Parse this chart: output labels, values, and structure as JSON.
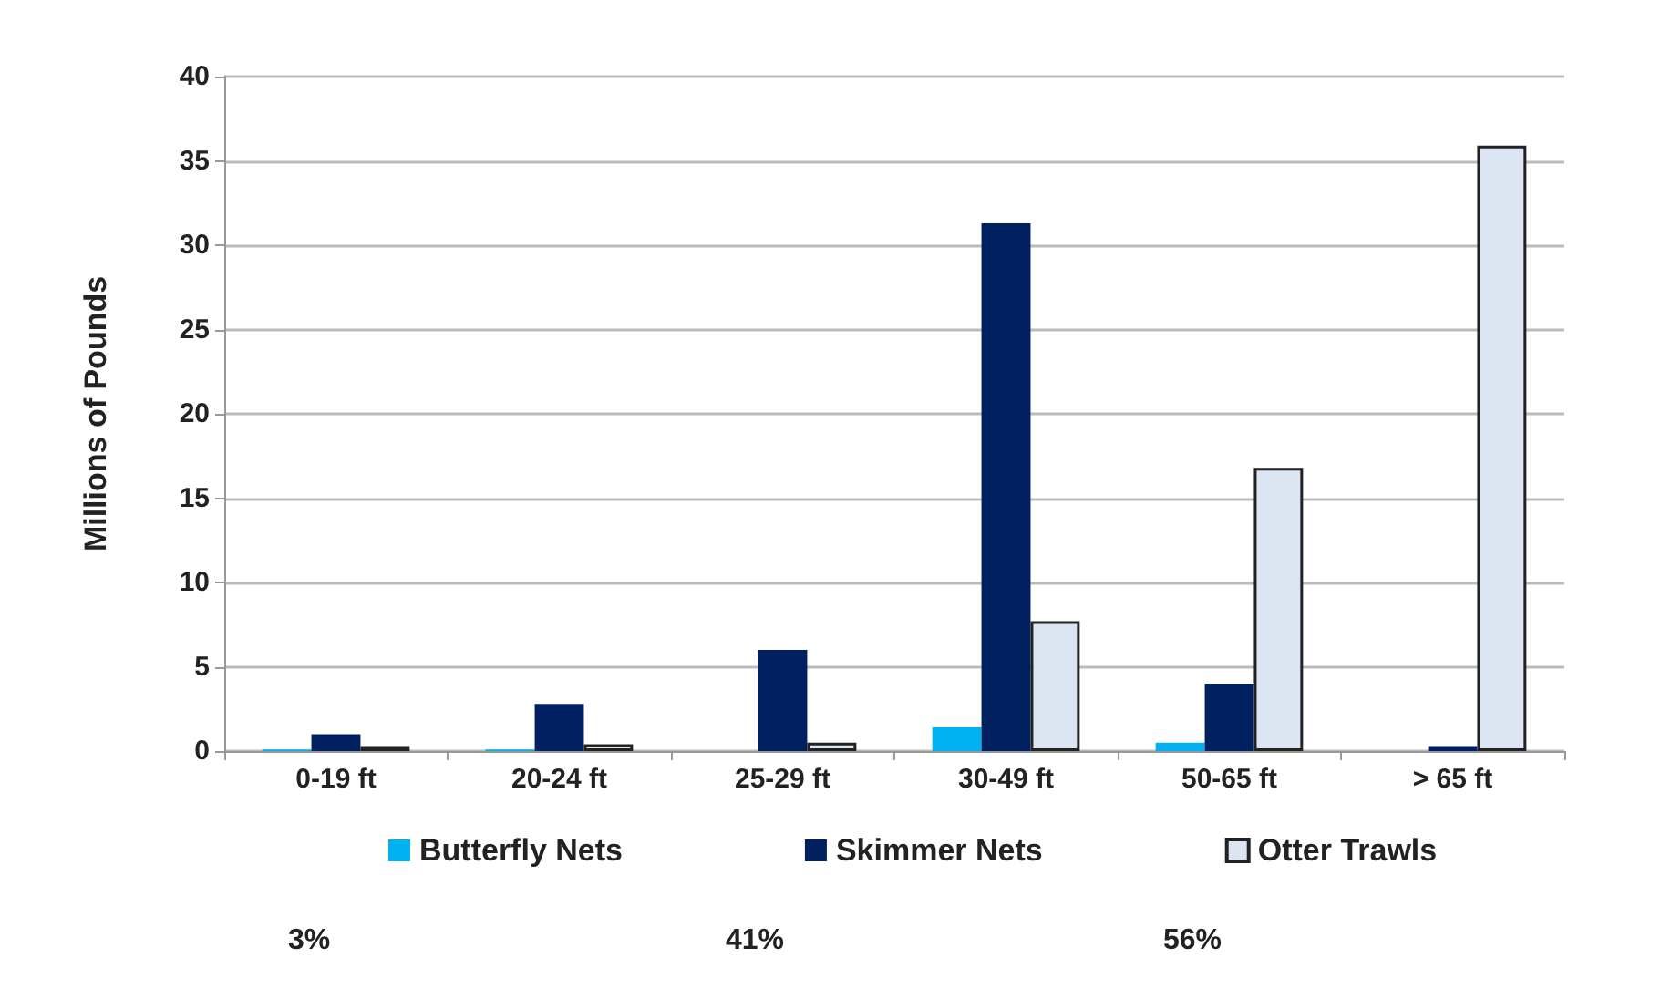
{
  "chart_data": {
    "type": "bar",
    "ylabel": "Millions of Pounds",
    "categories": [
      "0-19 ft",
      "20-24 ft",
      "25-29 ft",
      "30-49 ft",
      "50-65 ft",
      "> 65 ft"
    ],
    "series": [
      {
        "name": "Butterfly Nets",
        "color": "#00b0f0",
        "values": [
          0.1,
          0.1,
          0,
          1.4,
          0.5,
          0
        ]
      },
      {
        "name": "Skimmer Nets",
        "color": "#002060",
        "values": [
          1.0,
          2.8,
          6.0,
          31.3,
          4.0,
          0.3
        ]
      },
      {
        "name": "Otter Trawls",
        "color": "#dce6f2",
        "values": [
          0.3,
          0.4,
          0.5,
          7.7,
          16.8,
          35.9
        ]
      }
    ],
    "ylim": [
      0,
      40
    ],
    "yticks": [
      0,
      5,
      10,
      15,
      20,
      25,
      30,
      35,
      40
    ],
    "grid": "y",
    "legend": "bottom",
    "annotations": [
      "3%",
      "41%",
      "56%"
    ]
  }
}
